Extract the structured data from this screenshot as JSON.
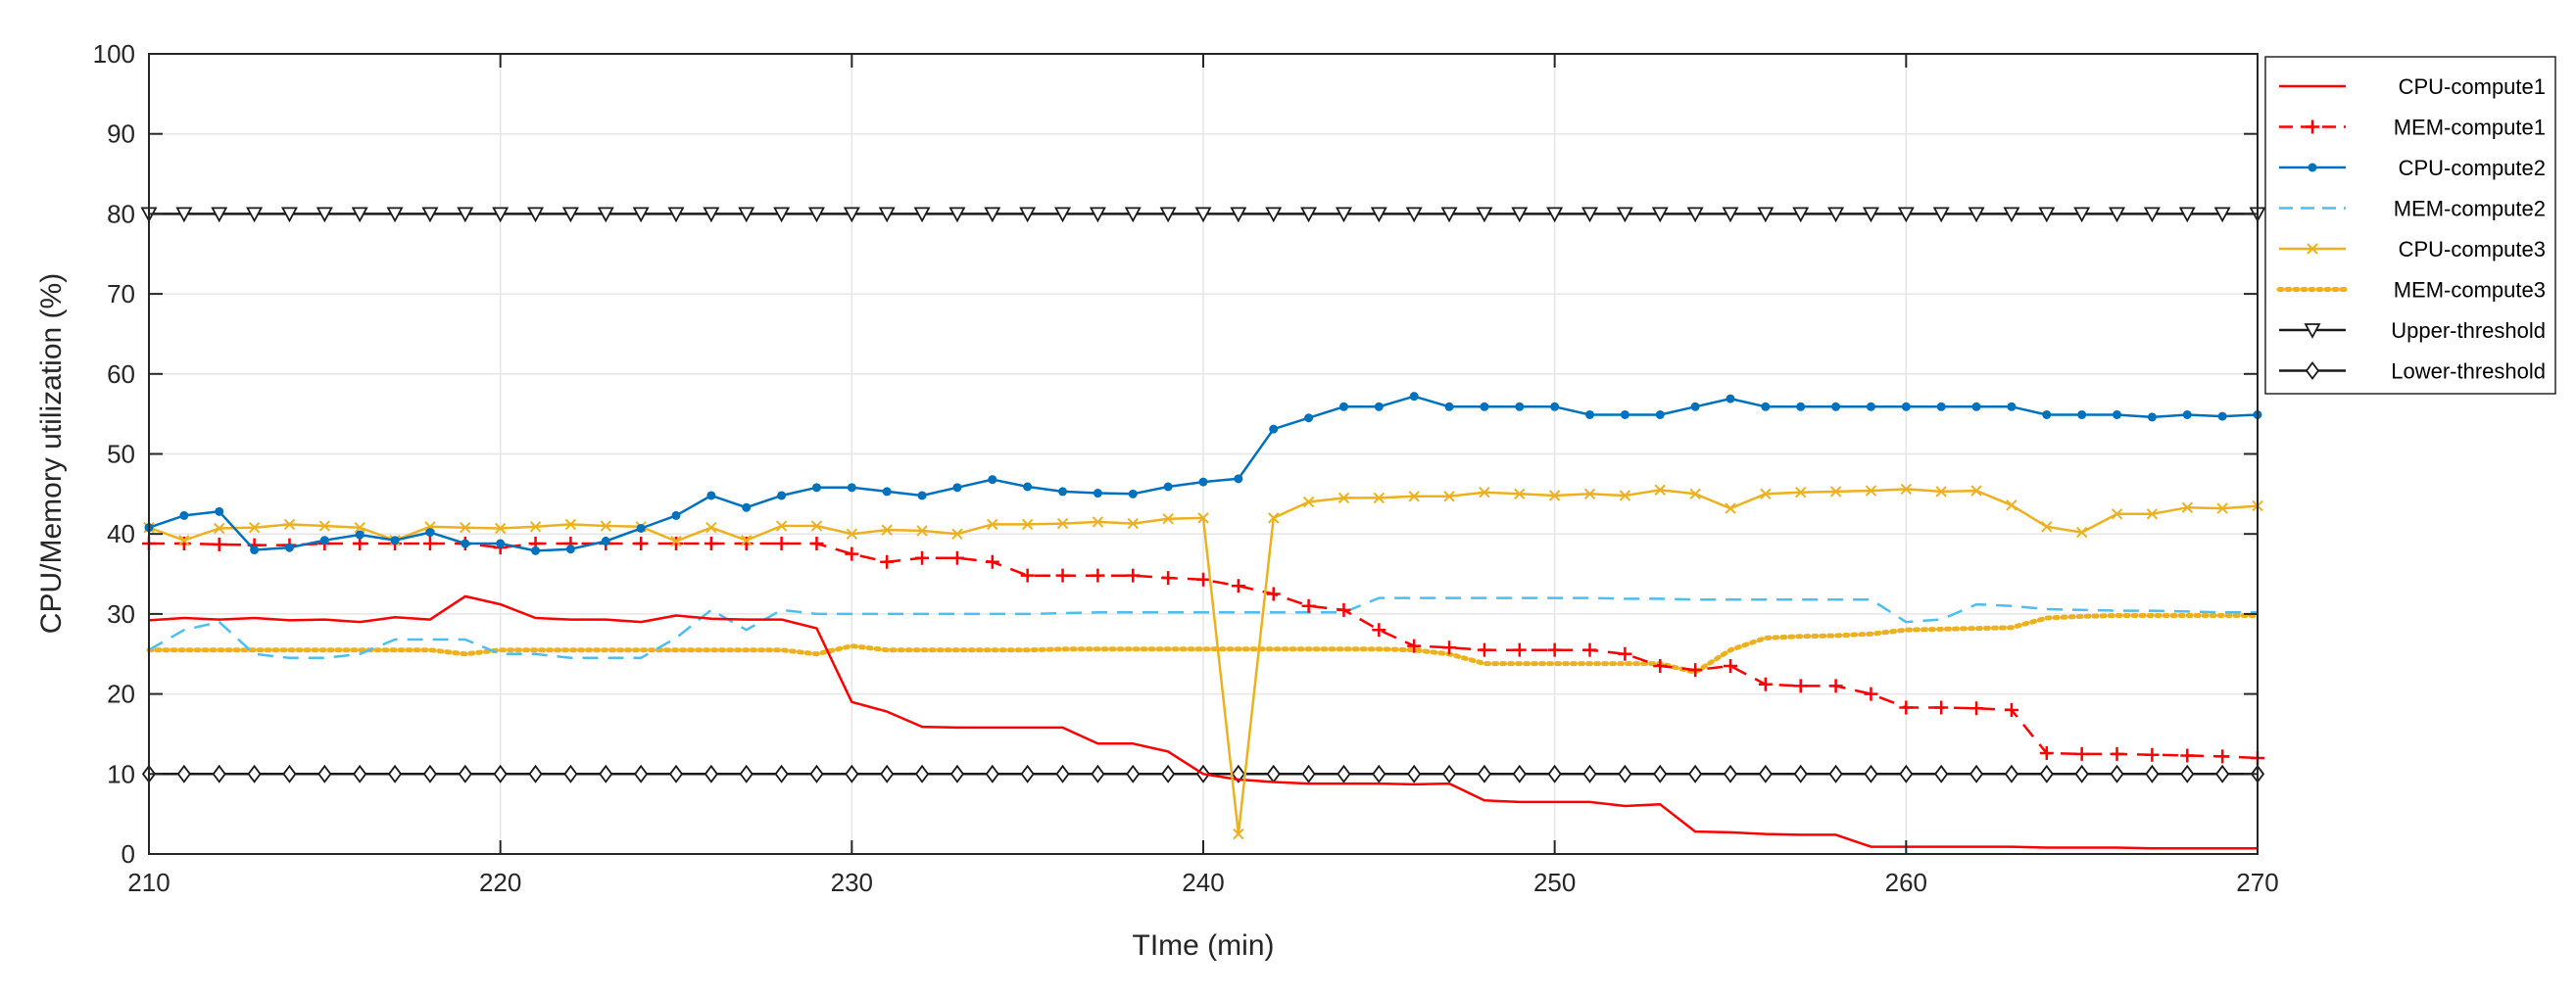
{
  "chart_data": {
    "type": "line",
    "xlabel": "TIme (min)",
    "ylabel": "CPU/Memory utilization (%)",
    "xlim": [
      210,
      270
    ],
    "ylim": [
      0,
      100
    ],
    "xticks": [
      210,
      220,
      230,
      240,
      250,
      260,
      270
    ],
    "yticks": [
      0,
      10,
      20,
      30,
      40,
      50,
      60,
      70,
      80,
      90,
      100
    ],
    "grid": true,
    "legend_position": "top-right",
    "x": [
      210,
      211,
      212,
      213,
      214,
      215,
      216,
      217,
      218,
      219,
      220,
      221,
      222,
      223,
      224,
      225,
      226,
      227,
      228,
      229,
      230,
      231,
      232,
      233,
      234,
      235,
      236,
      237,
      238,
      239,
      240,
      241,
      242,
      243,
      244,
      245,
      246,
      247,
      248,
      249,
      250,
      251,
      252,
      253,
      254,
      255,
      256,
      257,
      258,
      259,
      260,
      261,
      262,
      263,
      264,
      265,
      266,
      267,
      268,
      269,
      270
    ],
    "series": [
      {
        "name": "CPU-compute1",
        "color": "#ff0000",
        "style": "solid",
        "marker": "none",
        "values": [
          29.2,
          29.5,
          29.3,
          29.5,
          29.2,
          29.3,
          29.0,
          29.6,
          29.3,
          32.2,
          31.2,
          29.5,
          29.3,
          29.3,
          29.0,
          29.8,
          29.4,
          29.3,
          29.3,
          28.2,
          19.0,
          17.8,
          15.9,
          15.8,
          15.8,
          15.8,
          15.8,
          13.8,
          13.8,
          12.8,
          10.0,
          9.3,
          9.0,
          8.8,
          8.8,
          8.8,
          8.7,
          8.8,
          6.7,
          6.5,
          6.5,
          6.5,
          6.0,
          6.2,
          2.8,
          2.7,
          2.5,
          2.4,
          2.4,
          0.9,
          0.9,
          0.9,
          0.9,
          0.9,
          0.8,
          0.8,
          0.8,
          0.7,
          0.7,
          0.7,
          0.7
        ]
      },
      {
        "name": "MEM-compute1",
        "color": "#ff0000",
        "style": "dashed",
        "marker": "plus",
        "values": [
          38.8,
          38.8,
          38.7,
          38.6,
          38.6,
          38.8,
          38.8,
          38.8,
          38.8,
          38.8,
          38.3,
          38.8,
          38.8,
          38.8,
          38.8,
          38.8,
          38.8,
          38.8,
          38.8,
          38.8,
          37.5,
          36.5,
          37.0,
          37.0,
          36.5,
          34.8,
          34.8,
          34.8,
          34.8,
          34.5,
          34.3,
          33.5,
          32.5,
          31.0,
          30.5,
          28.0,
          26.0,
          25.8,
          25.5,
          25.5,
          25.5,
          25.5,
          25.0,
          23.5,
          23.0,
          23.5,
          21.2,
          21.0,
          21.0,
          20.0,
          18.3,
          18.3,
          18.2,
          18.0,
          12.6,
          12.5,
          12.5,
          12.4,
          12.3,
          12.2,
          12.0
        ]
      },
      {
        "name": "CPU-compute2",
        "color": "#0072bd",
        "style": "solid",
        "marker": "dot",
        "values": [
          40.8,
          42.3,
          42.8,
          38.0,
          38.3,
          39.2,
          39.9,
          39.2,
          40.2,
          38.8,
          38.8,
          37.9,
          38.1,
          39.1,
          40.7,
          42.3,
          44.8,
          43.3,
          44.8,
          45.8,
          45.8,
          45.3,
          44.8,
          45.8,
          46.8,
          45.9,
          45.3,
          45.1,
          45.0,
          45.9,
          46.5,
          46.9,
          53.1,
          54.5,
          55.9,
          55.9,
          57.2,
          55.9,
          55.9,
          55.9,
          55.9,
          54.9,
          54.9,
          54.9,
          55.9,
          56.9,
          55.9,
          55.9,
          55.9,
          55.9,
          55.9,
          55.9,
          55.9,
          55.9,
          54.9,
          54.9,
          54.9,
          54.6,
          54.9,
          54.7,
          54.9
        ]
      },
      {
        "name": "MEM-compute2",
        "color": "#4dbeee",
        "style": "dashed",
        "marker": "none",
        "values": [
          25.5,
          28.0,
          29.0,
          25.0,
          24.5,
          24.5,
          25.0,
          26.8,
          26.8,
          26.8,
          25.0,
          25.0,
          24.5,
          24.5,
          24.5,
          27.0,
          30.5,
          28.0,
          30.5,
          30.0,
          30.0,
          30.0,
          30.0,
          30.0,
          30.0,
          30.0,
          30.1,
          30.2,
          30.2,
          30.2,
          30.2,
          30.2,
          30.2,
          30.2,
          30.2,
          32.0,
          32.0,
          32.0,
          32.0,
          32.0,
          32.0,
          32.0,
          31.9,
          31.9,
          31.8,
          31.8,
          31.8,
          31.8,
          31.8,
          31.8,
          29.0,
          29.3,
          31.2,
          31.0,
          30.6,
          30.5,
          30.4,
          30.4,
          30.3,
          30.2,
          30.2
        ]
      },
      {
        "name": "CPU-compute3",
        "color": "#edb120",
        "style": "solid",
        "marker": "x",
        "values": [
          40.8,
          39.2,
          40.7,
          40.8,
          41.2,
          41.0,
          40.8,
          39.2,
          40.9,
          40.8,
          40.7,
          40.9,
          41.2,
          41.0,
          40.9,
          39.1,
          40.8,
          39.2,
          41.0,
          41.0,
          40.0,
          40.5,
          40.4,
          40.0,
          41.2,
          41.2,
          41.3,
          41.5,
          41.3,
          41.9,
          42.0,
          2.5,
          42.0,
          44.0,
          44.5,
          44.5,
          44.7,
          44.7,
          45.2,
          45.0,
          44.8,
          45.0,
          44.8,
          45.5,
          45.0,
          43.2,
          45.0,
          45.2,
          45.3,
          45.4,
          45.6,
          45.3,
          45.4,
          43.6,
          40.9,
          40.2,
          42.5,
          42.5,
          43.3,
          43.2,
          43.5
        ]
      },
      {
        "name": "MEM-compute3",
        "color": "#edb120",
        "style": "dotted",
        "marker": "none",
        "values": [
          25.5,
          25.5,
          25.5,
          25.5,
          25.5,
          25.5,
          25.5,
          25.5,
          25.5,
          25.0,
          25.5,
          25.5,
          25.5,
          25.5,
          25.5,
          25.5,
          25.5,
          25.5,
          25.5,
          25.0,
          26.0,
          25.5,
          25.5,
          25.5,
          25.5,
          25.5,
          25.6,
          25.6,
          25.6,
          25.6,
          25.6,
          25.6,
          25.6,
          25.6,
          25.6,
          25.6,
          25.5,
          25.0,
          23.8,
          23.8,
          23.8,
          23.8,
          23.8,
          23.8,
          22.7,
          25.5,
          27.0,
          27.2,
          27.3,
          27.5,
          28.0,
          28.1,
          28.2,
          28.3,
          29.5,
          29.7,
          29.8,
          29.8,
          29.8,
          29.8,
          29.8
        ]
      },
      {
        "name": "Upper-threshold",
        "color": "#1a1a1a",
        "style": "solid",
        "marker": "triangle-down",
        "constant": 80
      },
      {
        "name": "Lower-threshold",
        "color": "#1a1a1a",
        "style": "solid",
        "marker": "diamond",
        "constant": 10
      }
    ]
  }
}
